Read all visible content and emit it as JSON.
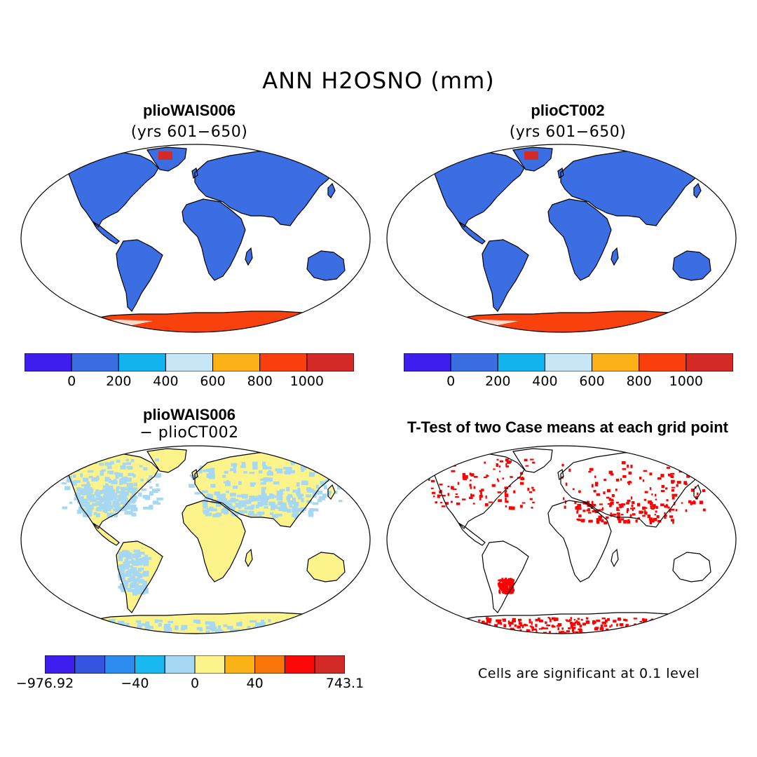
{
  "title": "ANN H2OSNO (mm)",
  "panels": [
    {
      "name": "plioWAIS006",
      "subtitle": "(yrs 601−650)"
    },
    {
      "name": "plioCT002",
      "subtitle": "(yrs 601−650)"
    },
    {
      "name": "plioWAIS006",
      "subtitle": "− plioCT002"
    },
    {
      "name": "T-Test of two Case means at each grid point",
      "subtitle": ""
    }
  ],
  "colorbar_abs": {
    "colors": [
      "#3e1ff0",
      "#3b6ee3",
      "#12b4f0",
      "#c7e7f7",
      "#fbb217",
      "#fb3f0c",
      "#d42a27"
    ],
    "labels": [
      "0",
      "200",
      "400",
      "600",
      "800",
      "1000"
    ]
  },
  "colorbar_diff": {
    "colors": [
      "#3e1ff0",
      "#3355e0",
      "#2d8cf0",
      "#18b9f0",
      "#a6d8f3",
      "#fcf38a",
      "#fbb217",
      "#f97409",
      "#fb0808",
      "#d42a27"
    ],
    "labels": [
      "−976.92",
      "−40",
      "0",
      "40",
      "743.1"
    ]
  },
  "note": "Cells are significant at 0.1 level",
  "colors": {
    "land_abs": "#3b6ee3",
    "antarctica_abs": "#f8410c",
    "greenland_abs": "#d42a27",
    "diff_yellow": "#fcf38a",
    "diff_blue": "#a6d8f3",
    "significant": "#ff0000"
  }
}
